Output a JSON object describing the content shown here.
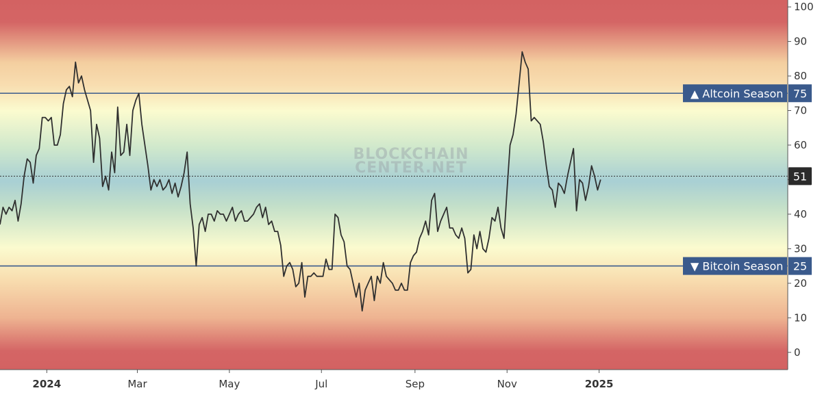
{
  "watermark": {
    "line1": "BLOCKCHAIN",
    "line2": "CENTER.NET"
  },
  "colors": {
    "line": "#2f2f2f",
    "threshold": "#3a5a8c",
    "badge": "#3a5a8c",
    "current_badge": "#2b2b2b",
    "gradient_low": "#d26060",
    "gradient_mid_warm": "#f6d8a8",
    "gradient_yellow": "#fbfbd0",
    "gradient_green": "#cde7cc",
    "gradient_teal": "#a9d0d4"
  },
  "chart_data": {
    "type": "line",
    "title": "",
    "xlabel": "",
    "ylabel": "",
    "ylim": [
      -5,
      102
    ],
    "xlim": [
      "2023-12-01",
      "2025-05-06"
    ],
    "y_ticks": [
      "0",
      "10",
      "20",
      "30",
      "40",
      "50",
      "60",
      "70",
      "80",
      "90",
      "100"
    ],
    "x_ticks": [
      {
        "label": "2024",
        "date": "2024-01-01",
        "bold": true
      },
      {
        "label": "Mar",
        "date": "2024-03-01",
        "bold": false
      },
      {
        "label": "May",
        "date": "2024-05-01",
        "bold": false
      },
      {
        "label": "Jul",
        "date": "2024-07-01",
        "bold": false
      },
      {
        "label": "Sep",
        "date": "2024-09-01",
        "bold": false
      },
      {
        "label": "Nov",
        "date": "2024-11-01",
        "bold": false
      },
      {
        "label": "2025",
        "date": "2025-01-01",
        "bold": true
      }
    ],
    "thresholds": [
      {
        "label": "▲ Altcoin Season",
        "value": 75,
        "value_label": "75"
      },
      {
        "label": "▼ Bitcoin Season",
        "value": 25,
        "value_label": "25"
      }
    ],
    "current": {
      "value": 51,
      "value_label": "51"
    },
    "grid": false,
    "series": [
      {
        "points": [
          [
            "2023-12-01",
            37
          ],
          [
            "2023-12-03",
            42
          ],
          [
            "2023-12-05",
            40
          ],
          [
            "2023-12-07",
            42
          ],
          [
            "2023-12-09",
            41
          ],
          [
            "2023-12-11",
            44
          ],
          [
            "2023-12-13",
            38
          ],
          [
            "2023-12-15",
            43
          ],
          [
            "2023-12-17",
            51
          ],
          [
            "2023-12-19",
            56
          ],
          [
            "2023-12-21",
            55
          ],
          [
            "2023-12-23",
            49
          ],
          [
            "2023-12-25",
            57
          ],
          [
            "2023-12-27",
            59
          ],
          [
            "2023-12-29",
            68
          ],
          [
            "2023-12-31",
            68
          ],
          [
            "2024-01-02",
            67
          ],
          [
            "2024-01-04",
            68
          ],
          [
            "2024-01-06",
            60
          ],
          [
            "2024-01-08",
            60
          ],
          [
            "2024-01-10",
            63
          ],
          [
            "2024-01-12",
            72
          ],
          [
            "2024-01-14",
            76
          ],
          [
            "2024-01-16",
            77
          ],
          [
            "2024-01-18",
            74
          ],
          [
            "2024-01-20",
            84
          ],
          [
            "2024-01-22",
            78
          ],
          [
            "2024-01-24",
            80
          ],
          [
            "2024-01-26",
            76
          ],
          [
            "2024-01-28",
            73
          ],
          [
            "2024-01-30",
            70
          ],
          [
            "2024-02-01",
            55
          ],
          [
            "2024-02-03",
            66
          ],
          [
            "2024-02-05",
            62
          ],
          [
            "2024-02-07",
            48
          ],
          [
            "2024-02-09",
            51
          ],
          [
            "2024-02-11",
            47
          ],
          [
            "2024-02-13",
            58
          ],
          [
            "2024-02-15",
            52
          ],
          [
            "2024-02-17",
            71
          ],
          [
            "2024-02-19",
            57
          ],
          [
            "2024-02-21",
            58
          ],
          [
            "2024-02-23",
            66
          ],
          [
            "2024-02-25",
            57
          ],
          [
            "2024-02-27",
            70
          ],
          [
            "2024-02-29",
            73
          ],
          [
            "2024-03-02",
            75
          ],
          [
            "2024-03-04",
            66
          ],
          [
            "2024-03-06",
            60
          ],
          [
            "2024-03-08",
            54
          ],
          [
            "2024-03-10",
            47
          ],
          [
            "2024-03-12",
            50
          ],
          [
            "2024-03-14",
            48
          ],
          [
            "2024-03-16",
            50
          ],
          [
            "2024-03-18",
            47
          ],
          [
            "2024-03-20",
            48
          ],
          [
            "2024-03-22",
            50
          ],
          [
            "2024-03-24",
            46
          ],
          [
            "2024-03-26",
            49
          ],
          [
            "2024-03-28",
            45
          ],
          [
            "2024-03-30",
            48
          ],
          [
            "2024-04-01",
            52
          ],
          [
            "2024-04-03",
            58
          ],
          [
            "2024-04-05",
            43
          ],
          [
            "2024-04-07",
            36
          ],
          [
            "2024-04-09",
            25
          ],
          [
            "2024-04-11",
            37
          ],
          [
            "2024-04-13",
            39
          ],
          [
            "2024-04-15",
            35
          ],
          [
            "2024-04-17",
            40
          ],
          [
            "2024-04-19",
            40
          ],
          [
            "2024-04-21",
            38
          ],
          [
            "2024-04-23",
            41
          ],
          [
            "2024-04-25",
            40
          ],
          [
            "2024-04-27",
            40
          ],
          [
            "2024-04-29",
            38
          ],
          [
            "2024-05-01",
            40
          ],
          [
            "2024-05-03",
            42
          ],
          [
            "2024-05-05",
            38
          ],
          [
            "2024-05-07",
            40
          ],
          [
            "2024-05-09",
            41
          ],
          [
            "2024-05-11",
            38
          ],
          [
            "2024-05-13",
            38
          ],
          [
            "2024-05-15",
            39
          ],
          [
            "2024-05-17",
            40
          ],
          [
            "2024-05-19",
            42
          ],
          [
            "2024-05-21",
            43
          ],
          [
            "2024-05-23",
            39
          ],
          [
            "2024-05-25",
            42
          ],
          [
            "2024-05-27",
            37
          ],
          [
            "2024-05-29",
            38
          ],
          [
            "2024-05-31",
            35
          ],
          [
            "2024-06-02",
            35
          ],
          [
            "2024-06-04",
            31
          ],
          [
            "2024-06-06",
            22
          ],
          [
            "2024-06-08",
            25
          ],
          [
            "2024-06-10",
            26
          ],
          [
            "2024-06-12",
            24
          ],
          [
            "2024-06-14",
            19
          ],
          [
            "2024-06-16",
            20
          ],
          [
            "2024-06-18",
            26
          ],
          [
            "2024-06-20",
            16
          ],
          [
            "2024-06-22",
            22
          ],
          [
            "2024-06-24",
            22
          ],
          [
            "2024-06-26",
            23
          ],
          [
            "2024-06-28",
            22
          ],
          [
            "2024-06-30",
            22
          ],
          [
            "2024-07-02",
            22
          ],
          [
            "2024-07-04",
            27
          ],
          [
            "2024-07-06",
            24
          ],
          [
            "2024-07-08",
            24
          ],
          [
            "2024-07-10",
            40
          ],
          [
            "2024-07-12",
            39
          ],
          [
            "2024-07-14",
            34
          ],
          [
            "2024-07-16",
            32
          ],
          [
            "2024-07-18",
            25
          ],
          [
            "2024-07-20",
            24
          ],
          [
            "2024-07-22",
            20
          ],
          [
            "2024-07-24",
            16
          ],
          [
            "2024-07-26",
            20
          ],
          [
            "2024-07-28",
            12
          ],
          [
            "2024-07-30",
            18
          ],
          [
            "2024-08-01",
            20
          ],
          [
            "2024-08-03",
            22
          ],
          [
            "2024-08-05",
            15
          ],
          [
            "2024-08-07",
            22
          ],
          [
            "2024-08-09",
            20
          ],
          [
            "2024-08-11",
            26
          ],
          [
            "2024-08-13",
            22
          ],
          [
            "2024-08-15",
            21
          ],
          [
            "2024-08-17",
            20
          ],
          [
            "2024-08-19",
            18
          ],
          [
            "2024-08-21",
            18
          ],
          [
            "2024-08-23",
            20
          ],
          [
            "2024-08-25",
            18
          ],
          [
            "2024-08-27",
            18
          ],
          [
            "2024-08-29",
            26
          ],
          [
            "2024-08-31",
            28
          ],
          [
            "2024-09-02",
            29
          ],
          [
            "2024-09-04",
            33
          ],
          [
            "2024-09-06",
            35
          ],
          [
            "2024-09-08",
            38
          ],
          [
            "2024-09-10",
            34
          ],
          [
            "2024-09-12",
            44
          ],
          [
            "2024-09-14",
            46
          ],
          [
            "2024-09-16",
            35
          ],
          [
            "2024-09-18",
            38
          ],
          [
            "2024-09-20",
            40
          ],
          [
            "2024-09-22",
            42
          ],
          [
            "2024-09-24",
            36
          ],
          [
            "2024-09-26",
            36
          ],
          [
            "2024-09-28",
            34
          ],
          [
            "2024-09-30",
            33
          ],
          [
            "2024-10-02",
            36
          ],
          [
            "2024-10-04",
            33
          ],
          [
            "2024-10-06",
            23
          ],
          [
            "2024-10-08",
            24
          ],
          [
            "2024-10-10",
            34
          ],
          [
            "2024-10-12",
            30
          ],
          [
            "2024-10-14",
            35
          ],
          [
            "2024-10-16",
            30
          ],
          [
            "2024-10-18",
            29
          ],
          [
            "2024-10-20",
            33
          ],
          [
            "2024-10-22",
            39
          ],
          [
            "2024-10-24",
            38
          ],
          [
            "2024-10-26",
            42
          ],
          [
            "2024-10-28",
            36
          ],
          [
            "2024-10-30",
            33
          ],
          [
            "2024-11-01",
            47
          ],
          [
            "2024-11-03",
            60
          ],
          [
            "2024-11-05",
            63
          ],
          [
            "2024-11-07",
            69
          ],
          [
            "2024-11-09",
            78
          ],
          [
            "2024-11-11",
            87
          ],
          [
            "2024-11-13",
            84
          ],
          [
            "2024-11-15",
            82
          ],
          [
            "2024-11-17",
            67
          ],
          [
            "2024-11-19",
            68
          ],
          [
            "2024-11-21",
            67
          ],
          [
            "2024-11-23",
            66
          ],
          [
            "2024-11-25",
            61
          ],
          [
            "2024-11-27",
            54
          ],
          [
            "2024-11-29",
            48
          ],
          [
            "2024-12-01",
            47
          ],
          [
            "2024-12-03",
            42
          ],
          [
            "2024-12-05",
            49
          ],
          [
            "2024-12-07",
            48
          ],
          [
            "2024-12-09",
            46
          ],
          [
            "2024-12-11",
            51
          ],
          [
            "2024-12-13",
            55
          ],
          [
            "2024-12-15",
            59
          ],
          [
            "2024-12-17",
            41
          ],
          [
            "2024-12-19",
            50
          ],
          [
            "2024-12-21",
            49
          ],
          [
            "2024-12-23",
            44
          ],
          [
            "2024-12-25",
            48
          ],
          [
            "2024-12-27",
            54
          ],
          [
            "2024-12-29",
            51
          ],
          [
            "2024-12-31",
            47
          ],
          [
            "2025-01-02",
            50
          ]
        ]
      }
    ]
  }
}
